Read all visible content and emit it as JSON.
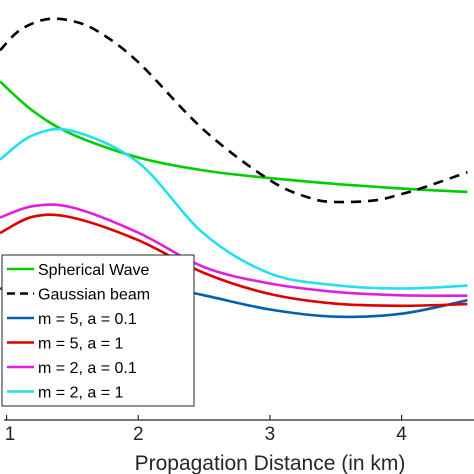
{
  "chart_data": {
    "type": "line",
    "title": "",
    "xlabel": "Propagation Distance  (in km)",
    "ylabel": "",
    "xlim": [
      0.95,
      4.55
    ],
    "ylim": [
      0,
      1
    ],
    "xticks": [
      1,
      2,
      3,
      4
    ],
    "xtick_labels": [
      "1",
      "2",
      "3",
      "4"
    ],
    "grid": false,
    "legend_position": "bottom-left",
    "series": [
      {
        "name": "Spherical Wave",
        "color": "#00cc00",
        "dash": "solid",
        "x": [
          0.95,
          1.2,
          1.5,
          2.0,
          2.5,
          3.0,
          3.5,
          4.0,
          4.5
        ],
        "y": [
          0.806,
          0.736,
          0.68,
          0.625,
          0.594,
          0.576,
          0.562,
          0.551,
          0.543
        ]
      },
      {
        "name": "Gaussian beam",
        "color": "#000000",
        "dash": "dashed",
        "x": [
          0.95,
          1.1,
          1.3,
          1.5,
          1.7,
          2.0,
          2.5,
          3.0,
          3.3,
          3.5,
          3.8,
          4.0,
          4.2,
          4.5
        ],
        "y": [
          0.88,
          0.928,
          0.954,
          0.95,
          0.924,
          0.852,
          0.69,
          0.571,
          0.529,
          0.519,
          0.523,
          0.538,
          0.557,
          0.59
        ]
      },
      {
        "name": "m = 5, a = 0.1",
        "color": "#0060b0",
        "dash": "solid",
        "x": [
          0.95,
          1.2,
          1.5,
          2.0,
          2.5,
          3.0,
          3.5,
          4.0,
          4.5
        ],
        "y": [
          0.312,
          0.34,
          0.346,
          0.329,
          0.297,
          0.263,
          0.246,
          0.253,
          0.285
        ]
      },
      {
        "name": "m = 5, a = 1",
        "color": "#dd0000",
        "dash": "solid",
        "x": [
          0.95,
          1.2,
          1.5,
          2.0,
          2.5,
          3.0,
          3.5,
          4.0,
          4.5
        ],
        "y": [
          0.445,
          0.484,
          0.482,
          0.428,
          0.35,
          0.3,
          0.277,
          0.272,
          0.276
        ]
      },
      {
        "name": "m = 2, a = 0.1",
        "color": "#e020e0",
        "dash": "solid",
        "x": [
          0.95,
          1.2,
          1.5,
          2.0,
          2.5,
          3.0,
          3.5,
          4.0,
          4.5
        ],
        "y": [
          0.482,
          0.509,
          0.506,
          0.446,
          0.364,
          0.325,
          0.305,
          0.297,
          0.296
        ]
      },
      {
        "name": "m = 2, a = 1",
        "color": "#22e0ee",
        "dash": "solid",
        "x": [
          0.95,
          1.2,
          1.5,
          2.0,
          2.5,
          3.0,
          3.5,
          4.0,
          4.5
        ],
        "y": [
          0.62,
          0.678,
          0.688,
          0.613,
          0.443,
          0.349,
          0.321,
          0.313,
          0.32
        ]
      }
    ]
  }
}
